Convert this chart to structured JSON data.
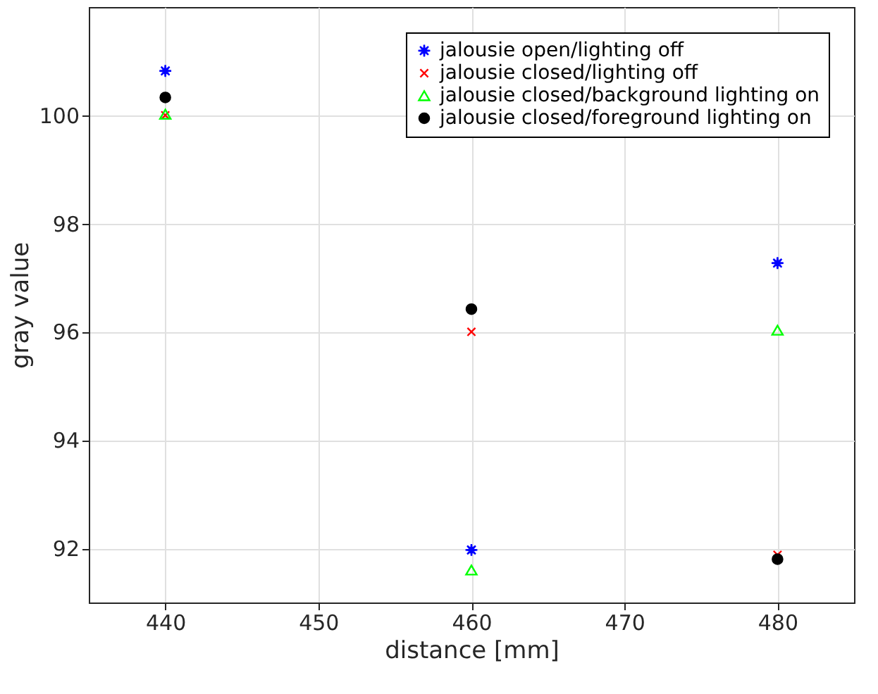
{
  "chart_data": {
    "type": "scatter",
    "xlabel": "distance [mm]",
    "ylabel": "gray value",
    "x": [
      440,
      460,
      480
    ],
    "series": [
      {
        "name": "jalousie open/lighting off",
        "color": "#0000ff",
        "marker": "star",
        "values": [
          100.82,
          91.97,
          97.27
        ]
      },
      {
        "name": "jalousie closed/lighting off",
        "color": "#ff0000",
        "marker": "cross",
        "values": [
          100.0,
          96.0,
          91.88
        ]
      },
      {
        "name": "jalousie closed/background lighting on",
        "color": "#00ff00",
        "marker": "triangle",
        "values": [
          100.02,
          91.6,
          96.03
        ]
      },
      {
        "name": "jalousie closed/foreground lighting on",
        "color": "#000000",
        "marker": "circle",
        "values": [
          100.33,
          96.42,
          91.8
        ]
      }
    ],
    "xlim": [
      435,
      485
    ],
    "ylim": [
      91,
      102
    ],
    "xticks": [
      440,
      450,
      460,
      470,
      480
    ],
    "yticks": [
      92,
      94,
      96,
      98,
      100
    ],
    "grid": true,
    "legend": "top right"
  }
}
